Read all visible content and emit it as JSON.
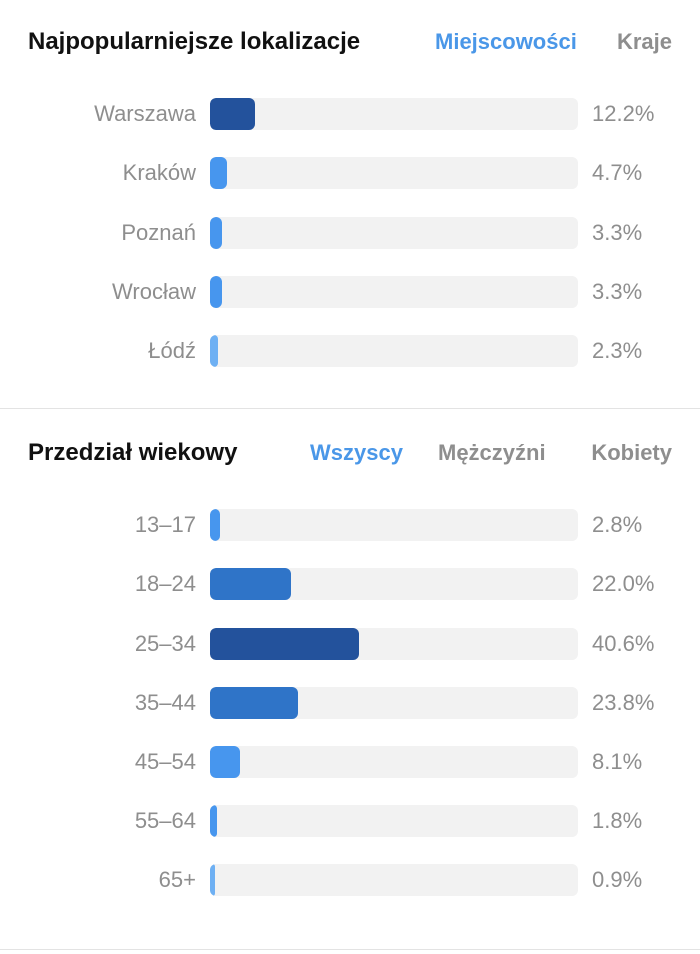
{
  "locations": {
    "title": "Najpopularniejsze lokalizacje",
    "tabs": [
      {
        "label": "Miejscowości",
        "active": true
      },
      {
        "label": "Kraje",
        "active": false
      }
    ],
    "rows": [
      {
        "label": "Warszawa",
        "value": "12.2%",
        "percent": 12.2,
        "color": "#23529c"
      },
      {
        "label": "Kraków",
        "value": "4.7%",
        "percent": 4.7,
        "color": "#4796ee"
      },
      {
        "label": "Poznań",
        "value": "3.3%",
        "percent": 3.3,
        "color": "#4796ee"
      },
      {
        "label": "Wrocław",
        "value": "3.3%",
        "percent": 3.3,
        "color": "#4796ee"
      },
      {
        "label": "Łódź",
        "value": "2.3%",
        "percent": 2.3,
        "color": "#6eb0f3"
      }
    ]
  },
  "age": {
    "title": "Przedział wiekowy",
    "tabs": [
      {
        "label": "Wszyscy",
        "active": true
      },
      {
        "label": "Mężczyźni",
        "active": false
      },
      {
        "label": "Kobiety",
        "active": false
      }
    ],
    "rows": [
      {
        "label": "13–17",
        "value": "2.8%",
        "percent": 2.8,
        "color": "#4796ee"
      },
      {
        "label": "18–24",
        "value": "22.0%",
        "percent": 22.0,
        "color": "#2f74c8"
      },
      {
        "label": "25–34",
        "value": "40.6%",
        "percent": 40.6,
        "color": "#23529c"
      },
      {
        "label": "35–44",
        "value": "23.8%",
        "percent": 23.8,
        "color": "#2f74c8"
      },
      {
        "label": "45–54",
        "value": "8.1%",
        "percent": 8.1,
        "color": "#4796ee"
      },
      {
        "label": "55–64",
        "value": "1.8%",
        "percent": 1.8,
        "color": "#4796ee"
      },
      {
        "label": "65+",
        "value": "0.9%",
        "percent": 0.9,
        "color": "#6eb0f3"
      }
    ]
  }
}
